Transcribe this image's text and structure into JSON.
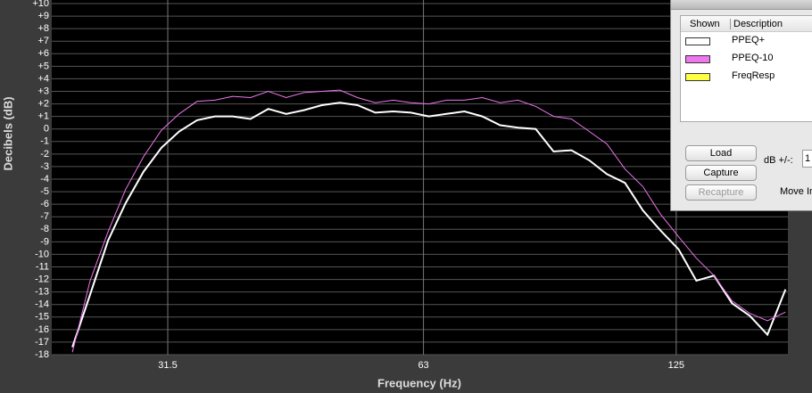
{
  "chart_data": {
    "type": "line",
    "x_label": "Frequency (Hz)",
    "y_label": "Decibels (dB)",
    "xscale": "log",
    "grid": true,
    "x": [
      24.32,
      25.52,
      26.79,
      28.11,
      29.5,
      30.96,
      32.49,
      34.1,
      35.79,
      37.56,
      39.42,
      41.37,
      43.42,
      45.57,
      47.83,
      50.2,
      52.68,
      55.29,
      58.03,
      60.9,
      63.92,
      67.08,
      70.4,
      73.89,
      77.55,
      81.39,
      85.42,
      89.65,
      94.09,
      98.75,
      103.6,
      108.8,
      114.2,
      119.8,
      125.8,
      132.0,
      138.5,
      145.4,
      152.6,
      160.1,
      168.1
    ],
    "xlim": [
      23.0,
      169.2
    ],
    "xticks": [
      31.5,
      63,
      125
    ],
    "ylim": [
      -18,
      10
    ],
    "yticks": [
      {
        "value": 10,
        "label": "+10"
      },
      {
        "value": 9,
        "label": "+9"
      },
      {
        "value": 8,
        "label": "+8"
      },
      {
        "value": 7,
        "label": "+7"
      },
      {
        "value": 6,
        "label": "+6"
      },
      {
        "value": 5,
        "label": "+5"
      },
      {
        "value": 4,
        "label": "+4"
      },
      {
        "value": 3,
        "label": "+3"
      },
      {
        "value": 2,
        "label": "+2"
      },
      {
        "value": 1,
        "label": "+1"
      },
      0,
      -1,
      -2,
      -3,
      -4,
      -5,
      -6,
      -7,
      -8,
      -9,
      -10,
      -11,
      -12,
      -13,
      -14,
      -15,
      -16,
      -17,
      -18
    ],
    "series": [
      {
        "name": "PPEQ+",
        "color": "#ffffff",
        "values": [
          -17.4,
          -13.2,
          -8.9,
          -5.9,
          -3.4,
          -1.5,
          -0.2,
          0.7,
          1.0,
          1.0,
          0.8,
          1.6,
          1.2,
          1.5,
          1.9,
          2.1,
          1.9,
          1.3,
          1.4,
          1.3,
          1.0,
          1.2,
          1.4,
          1.0,
          0.3,
          0.1,
          0.0,
          -1.8,
          -1.7,
          -2.5,
          -3.6,
          -4.3,
          -6.5,
          -8.1,
          -9.6,
          -12.1,
          -11.7,
          -13.9,
          -14.9,
          -16.4,
          -12.8
        ]
      },
      {
        "name": "PPEQ-10",
        "color": "#ee77ee",
        "values": [
          -17.8,
          -12.1,
          -8.2,
          -4.8,
          -2.2,
          -0.1,
          1.2,
          2.2,
          2.3,
          2.6,
          2.5,
          3.0,
          2.5,
          2.9,
          3.0,
          3.1,
          2.5,
          2.1,
          2.3,
          2.1,
          2.0,
          2.3,
          2.3,
          2.5,
          2.1,
          2.3,
          1.8,
          1.0,
          0.8,
          -0.2,
          -1.2,
          -3.2,
          -4.6,
          -6.8,
          -8.6,
          -10.3,
          -11.7,
          -13.7,
          -14.7,
          -15.3,
          -14.6
        ]
      },
      {
        "name": "FreqResp",
        "color": "#ffff44",
        "values": [
          null,
          null,
          null,
          null,
          null,
          null,
          null,
          null,
          null,
          null,
          null,
          null,
          null,
          null,
          null,
          null,
          null,
          null,
          null,
          null,
          null,
          null,
          null,
          null,
          null,
          null,
          null,
          null,
          null,
          null,
          null,
          null,
          null,
          null,
          null,
          null,
          null,
          null,
          null,
          null,
          null
        ]
      }
    ]
  },
  "dialog": {
    "columns": [
      "Shown",
      "Description"
    ],
    "buttons": [
      "Load",
      "Capture",
      "Recapture"
    ],
    "db_label": "dB +/-:",
    "db_value": "1",
    "move_label": "Move In"
  }
}
